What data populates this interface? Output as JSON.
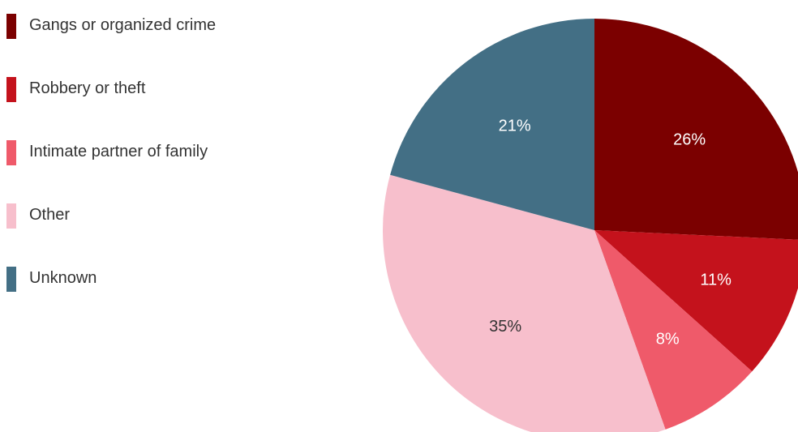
{
  "chart_data": {
    "type": "pie",
    "start_angle_deg": 0,
    "direction": "clockwise",
    "legend_position": "left",
    "slices": [
      {
        "label": "Gangs or organized crime",
        "value": 26,
        "display": "26%",
        "color": "#7b0000",
        "label_color": "#ffffff"
      },
      {
        "label": "Robbery or theft",
        "value": 11,
        "display": "11%",
        "color": "#c4121c",
        "label_color": "#ffffff"
      },
      {
        "label": "Intimate partner of family",
        "value": 8,
        "display": "8%",
        "color": "#ef5a6a",
        "label_color": "#ffffff"
      },
      {
        "label": "Other",
        "value": 35,
        "display": "35%",
        "color": "#f7bfcc",
        "label_color": "#333333"
      },
      {
        "label": "Unknown",
        "value": 21,
        "display": "21%",
        "color": "#436f85",
        "label_color": "#ffffff"
      }
    ]
  }
}
